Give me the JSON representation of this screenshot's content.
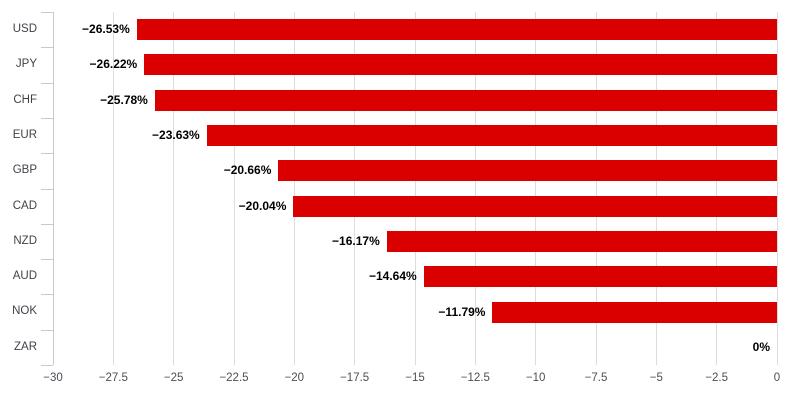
{
  "chart_data": {
    "type": "bar",
    "orientation": "horizontal",
    "title": "",
    "xlabel": "",
    "ylabel": "",
    "categories": [
      "USD",
      "JPY",
      "CHF",
      "EUR",
      "GBP",
      "CAD",
      "NZD",
      "AUD",
      "NOK",
      "ZAR"
    ],
    "values": [
      -26.53,
      -26.22,
      -25.78,
      -23.63,
      -20.66,
      -20.04,
      -16.17,
      -14.64,
      -11.79,
      0
    ],
    "data_labels": [
      "−26.53%",
      "−26.22%",
      "−25.78%",
      "−23.63%",
      "−20.66%",
      "−20.04%",
      "−16.17%",
      "−14.64%",
      "−11.79%",
      "0%"
    ],
    "xlim": [
      -30,
      0
    ],
    "xticks": [
      -30,
      -27.5,
      -25,
      -22.5,
      -20,
      -17.5,
      -15,
      -12.5,
      -10,
      -7.5,
      -5,
      -2.5,
      0
    ],
    "xtick_labels": [
      "−30",
      "−27.5",
      "−25",
      "−22.5",
      "−20",
      "−17.5",
      "−15",
      "−12.5",
      "−10",
      "−7.5",
      "−5",
      "−2.5",
      "0"
    ],
    "grid": true,
    "legend": false,
    "colors": {
      "bar": "#db0000",
      "gridline": "#dddddd",
      "axis": "#c6cbd3",
      "tick_label": "#4a4f55",
      "category_label": "#3f4349",
      "data_label": "#000000"
    }
  }
}
